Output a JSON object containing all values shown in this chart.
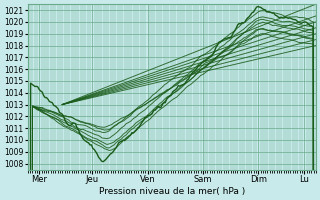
{
  "bg_color": "#c8eaea",
  "grid_color": "#6aaa8a",
  "line_color": "#1a5c1a",
  "xlabel": "Pression niveau de la mer( hPa )",
  "ylim": [
    1007.5,
    1021.5
  ],
  "yticks": [
    1008,
    1009,
    1010,
    1011,
    1012,
    1013,
    1014,
    1015,
    1016,
    1017,
    1018,
    1019,
    1020,
    1021
  ],
  "xlabels": [
    "Mer",
    "Jeu",
    "Ven",
    "Sam",
    "Dim",
    "Lu"
  ],
  "xlim": [
    0,
    125
  ],
  "x_tick_positions": [
    5,
    28,
    52,
    76,
    100,
    120
  ],
  "conv_x": 15,
  "conv_y": 1013.0,
  "forecast_ends": [
    [
      125,
      1021.5
    ],
    [
      125,
      1020.5
    ],
    [
      125,
      1019.5
    ],
    [
      125,
      1019.0
    ],
    [
      125,
      1018.5
    ],
    [
      125,
      1018.0
    ],
    [
      125,
      1020.0
    ]
  ],
  "dip_lines": [
    [
      1009.0,
      35,
      1019.5,
      0.1
    ],
    [
      1009.5,
      35,
      1020.0,
      0.1
    ],
    [
      1010.0,
      34,
      1020.5,
      0.1
    ],
    [
      1010.5,
      33,
      1021.0,
      0.1
    ],
    [
      1011.0,
      33,
      1019.0,
      0.1
    ],
    [
      1010.8,
      34,
      1019.5,
      0.1
    ],
    [
      1009.2,
      35,
      1020.2,
      0.1
    ]
  ]
}
